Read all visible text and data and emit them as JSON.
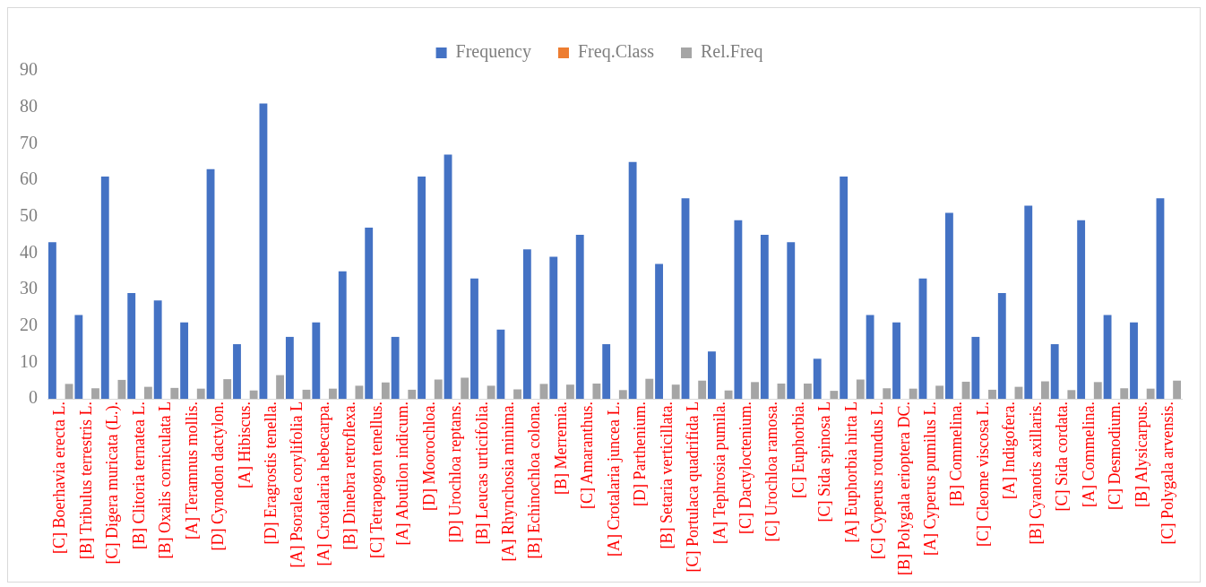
{
  "chart_data": {
    "type": "bar",
    "categories": [
      "[C] Boerhavia erecta L.",
      "[B] Tribulus terrestris L.",
      "[C] Digera muricata (L.).",
      "[B] Clitoria ternatea L.",
      "[B] Oxalis corniculata L",
      "[A] Teramnus mollis.",
      "[D] Cynodon dactylon.",
      "[A] Hibiscus.",
      "[D] Eragrostis tenella.",
      "[A] Psoralea corylifolia L",
      "[A] Crotalaria hebecarpa.",
      "[B] Dinebra retroflexa.",
      "[C] Tetrapogon tenellus.",
      "[A] Abutilon indicum.",
      "[D] Moorochloa.",
      "[D] Urochloa reptans.",
      "[B] Leucas urticifolia.",
      "[A] Rhynchosia minima.",
      "[B] Echinochloa colona.",
      "[B] Merremia.",
      "[C] Amaranthus.",
      "[A] Crotalaria juncea L.",
      "[D] Parthenium.",
      "[B] Setaria verticillata.",
      "[C] Portulaca quadrifida L",
      "[A] Tephrosia pumila.",
      "[C] Dactyloctenium.",
      "[C] Urochloa ramosa.",
      "[C] Euphorbia.",
      "[C] Sida spinosa L",
      "[A] Euphorbia hirta L",
      "[C] Cyperus rotundus L.",
      "[B] Polygala erioptera DC.",
      "[A] Cyperus pumilus L.",
      "[B] Commelina.",
      "[C] Cleome viscosa L.",
      "[A] Indigofera.",
      "[B] Cyanotis axillaris.",
      "[C] Sida cordata.",
      "[A] Commelina.",
      "[C] Desmodium.",
      "[B] Alysicarpus.",
      "[C] Polygala arvensis."
    ],
    "series": [
      {
        "name": "Frequency",
        "color": "#4472c4",
        "values": [
          43,
          23,
          61,
          29,
          27,
          21,
          63,
          15,
          81,
          17,
          21,
          35,
          47,
          17,
          61,
          67,
          33,
          19,
          41,
          39,
          45,
          15,
          65,
          37,
          55,
          13,
          49,
          45,
          43,
          11,
          61,
          23,
          21,
          33,
          51,
          17,
          29,
          53,
          15,
          49,
          23,
          21,
          55
        ]
      },
      {
        "name": "Freq.Class",
        "color": "#ed7d31",
        "values": [
          null,
          null,
          null,
          null,
          null,
          null,
          null,
          null,
          null,
          null,
          null,
          null,
          null,
          null,
          null,
          null,
          null,
          null,
          null,
          null,
          null,
          null,
          null,
          null,
          null,
          null,
          null,
          null,
          null,
          null,
          null,
          null,
          null,
          null,
          null,
          null,
          null,
          null,
          null,
          null,
          null,
          null,
          null
        ]
      },
      {
        "name": "Rel.Freq",
        "color": "#a5a5a5",
        "values": [
          4.1,
          2.9,
          5.2,
          3.3,
          3.0,
          2.8,
          5.4,
          2.3,
          6.5,
          2.5,
          2.8,
          3.6,
          4.5,
          2.5,
          5.3,
          5.8,
          3.6,
          2.6,
          4.1,
          3.9,
          4.2,
          2.4,
          5.5,
          3.9,
          5.0,
          2.3,
          4.6,
          4.2,
          4.2,
          2.2,
          5.3,
          2.9,
          2.8,
          3.6,
          4.7,
          2.5,
          3.3,
          4.8,
          2.4,
          4.6,
          2.9,
          2.8,
          5.0
        ]
      }
    ],
    "ylim": [
      0,
      90
    ],
    "yticks": [
      0,
      10,
      20,
      30,
      40,
      50,
      60,
      70,
      80,
      90
    ],
    "grid": false,
    "legend": "top"
  }
}
